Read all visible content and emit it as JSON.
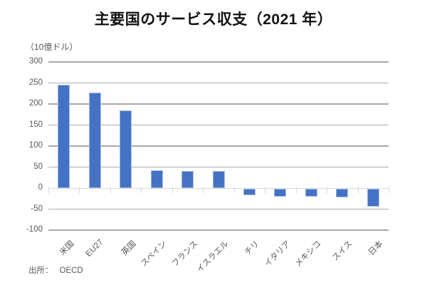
{
  "title": "主要国のサービス収支（2021 年）",
  "unit_label": "（10億ドル）",
  "source": {
    "label": "出所：",
    "value": "OECD"
  },
  "colors": {
    "bar_fill": "#4472C4",
    "bar_edge": "#A3BBE4",
    "gridline": "#A9A9A9",
    "zero_axis": "#D9D9D9",
    "label_text": "#595959",
    "title_text": "#111111"
  },
  "chart_data": {
    "type": "bar",
    "title": "主要国のサービス収支（2021 年）",
    "ylabel": "（10億ドル）",
    "xlabel": "",
    "categories": [
      "米国",
      "EU27",
      "英国",
      "スペイン",
      "フランス",
      "イスラエル",
      "チリ",
      "イタリア",
      "メキシコ",
      "スイス",
      "日本"
    ],
    "values": [
      245,
      227,
      185,
      43,
      41,
      40,
      -15,
      -18,
      -19,
      -21,
      -42
    ],
    "ylim": [
      -100,
      300
    ],
    "ytick_step": 50,
    "ytick_labels": [
      "300",
      "250",
      "200",
      "150",
      "100",
      "50",
      "0",
      "-50",
      "-100"
    ],
    "grid": true,
    "legend": false,
    "bar_color": "#4472C4",
    "source_annotation": "出所：OECD"
  }
}
